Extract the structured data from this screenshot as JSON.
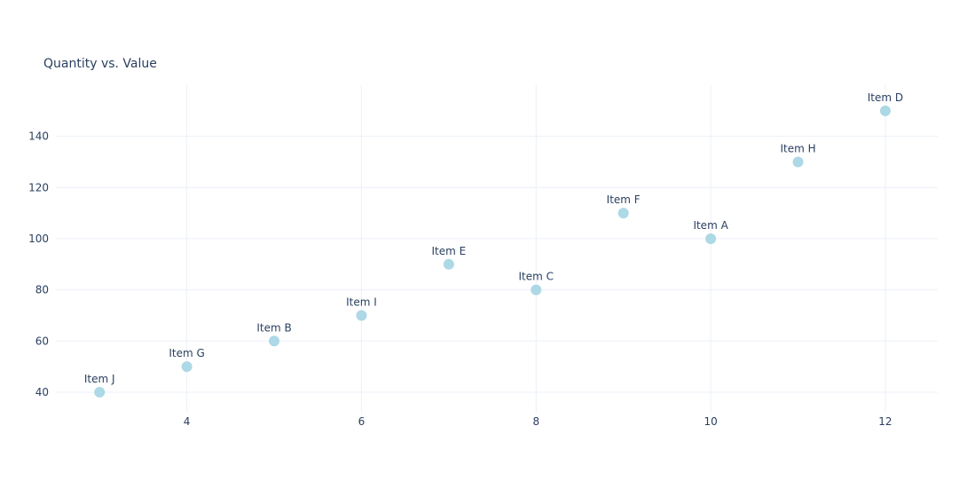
{
  "chart_data": {
    "type": "scatter",
    "title": "Quantity vs. Value",
    "xlabel": "",
    "ylabel": "",
    "xlim": [
      2.5,
      12.6
    ],
    "ylim": [
      32,
      160
    ],
    "x_ticks": [
      4,
      6,
      8,
      10,
      12
    ],
    "y_ticks": [
      40,
      60,
      80,
      100,
      120,
      140
    ],
    "grid": true,
    "marker_color": "#add8e6",
    "points": [
      {
        "label": "Item J",
        "x": 3,
        "y": 40
      },
      {
        "label": "Item G",
        "x": 4,
        "y": 50
      },
      {
        "label": "Item B",
        "x": 5,
        "y": 60
      },
      {
        "label": "Item I",
        "x": 6,
        "y": 70
      },
      {
        "label": "Item E",
        "x": 7,
        "y": 90
      },
      {
        "label": "Item C",
        "x": 8,
        "y": 80
      },
      {
        "label": "Item F",
        "x": 9,
        "y": 110
      },
      {
        "label": "Item A",
        "x": 10,
        "y": 100
      },
      {
        "label": "Item H",
        "x": 11,
        "y": 130
      },
      {
        "label": "Item D",
        "x": 12,
        "y": 150
      }
    ]
  }
}
